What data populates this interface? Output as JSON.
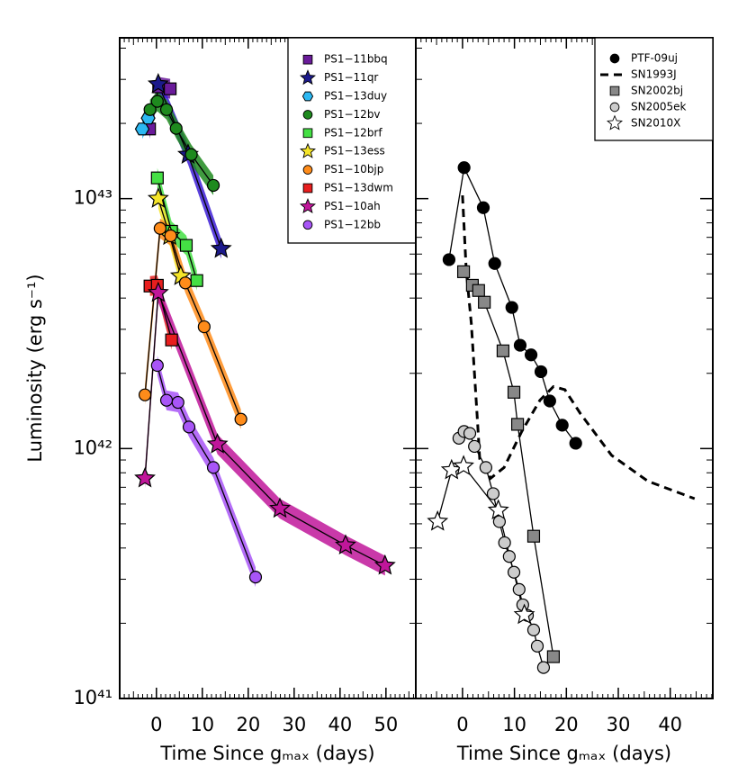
{
  "chart_data": [
    {
      "type": "line",
      "ylabel": "Luminosity (erg s⁻¹)",
      "xlabel": "Time Since gₘₐₓ (days)",
      "log_y": true,
      "legend": "upper right",
      "xlim": [
        -8,
        56.5
      ],
      "xticks": [
        0,
        10,
        20,
        30,
        40,
        50
      ],
      "ylim": [
        1e+41,
        4.4e+43
      ],
      "yticks": [
        {
          "value": 1e+41,
          "label": "10⁴¹"
        },
        {
          "value": 1e+42,
          "label": "10⁴²"
        },
        {
          "value": 1e+43,
          "label": "10⁴³"
        }
      ],
      "series": [
        {
          "name": "PS1−11bbq",
          "color": "#6a1b9a",
          "marker": "square",
          "band": true,
          "x": [
            -1.5,
            0.5,
            3
          ],
          "values": [
            1.9e+43,
            2.8e+43,
            2.75e+43
          ]
        },
        {
          "name": "PS1−11qr",
          "color": "#1c1a8c",
          "band_color": "#3d1fd6",
          "marker": "star",
          "band": true,
          "x": [
            0.4,
            6.9,
            14.1
          ],
          "values": [
            2.87e+43,
            1.5e+43,
            6.3e+42
          ]
        },
        {
          "name": "PS1−13duy",
          "color": "#2cb8f2",
          "marker": "hexagon",
          "band": true,
          "x": [
            -3.1,
            -1.8
          ],
          "values": [
            1.9e+43,
            2.1e+43
          ]
        },
        {
          "name": "PS1−12bv",
          "color": "#1e8a1e",
          "marker": "circle",
          "band": true,
          "x": [
            -1.4,
            0.2,
            2.2,
            4.3,
            7.6,
            12.4
          ],
          "values": [
            2.27e+43,
            2.45e+43,
            2.27e+43,
            1.91e+43,
            1.5e+43,
            1.13e+43
          ]
        },
        {
          "name": "PS1−12brf",
          "color": "#44e044",
          "marker": "square",
          "band": true,
          "x": [
            0.2,
            3.3,
            6.5,
            8.8
          ],
          "values": [
            1.21e+43,
            7.4e+42,
            6.5e+42,
            4.7e+42
          ]
        },
        {
          "name": "PS1−13ess",
          "color": "#f5e52a",
          "marker": "star",
          "band": true,
          "x": [
            0.4,
            2.9,
            5.3
          ],
          "values": [
            1e+43,
            7.1e+42,
            4.9e+42
          ]
        },
        {
          "name": "PS1−10bjp",
          "color": "#ff8c1a",
          "marker": "circle",
          "band": true,
          "x": [
            -2.5,
            0.8,
            3.1,
            6.3,
            10.4,
            18.4
          ],
          "values": [
            1.64e+42,
            7.6e+42,
            7.1e+42,
            4.6e+42,
            3.07e+42,
            1.31e+42
          ]
        },
        {
          "name": "PS1−13dwm",
          "color": "#e81e1e",
          "marker": "square",
          "band": true,
          "x": [
            -1.4,
            0.2,
            3.3
          ],
          "values": [
            4.47e+42,
            4.5e+42,
            2.72e+42
          ]
        },
        {
          "name": "PS1−10ah",
          "color": "#c0169a",
          "marker": "star",
          "band": true,
          "x": [
            -2.5,
            0.4,
            13.3,
            26.9,
            41.2,
            49.8
          ],
          "values": [
            7.6e+41,
            4.2e+42,
            1.04e+42,
            5.75e+41,
            4.1e+41,
            3.4e+41
          ]
        },
        {
          "name": "PS1−12bb",
          "color": "#a855f7",
          "marker": "circle",
          "band": true,
          "x": [
            0.2,
            2.2,
            4.7,
            7.1,
            12.4,
            21.6
          ],
          "values": [
            2.15e+42,
            1.56e+42,
            1.53e+42,
            1.22e+42,
            8.4e+41,
            3.06e+41
          ]
        }
      ]
    },
    {
      "type": "line",
      "xlabel": "Time Since gₘₐₓ (days)",
      "log_y": true,
      "legend": "upper right",
      "xlim": [
        -9,
        48.2
      ],
      "xticks": [
        0,
        10,
        20,
        30,
        40
      ],
      "ylim": [
        1e+41,
        4.4e+43
      ],
      "series": [
        {
          "name": "PTF-09uj",
          "color": "#000000",
          "marker": "circle",
          "linestyle": "solid",
          "x": [
            -2.6,
            0.3,
            4,
            6.2,
            9.5,
            11.1,
            13.2,
            15.1,
            16.8,
            19.2,
            21.8
          ],
          "values": [
            5.7e+42,
            1.33e+43,
            9.2e+42,
            5.5e+42,
            3.67e+42,
            2.59e+42,
            2.37e+42,
            2.03e+42,
            1.55e+42,
            1.24e+42,
            1.05e+42
          ]
        },
        {
          "name": "SN1993J",
          "color": "#000000",
          "linestyle": "dashed",
          "x": [
            0,
            0.7,
            1.7,
            2.9,
            3.3,
            5.4,
            8,
            11.4,
            14.9,
            17.5,
            19.7,
            22.7,
            28.7,
            35.7,
            44.7
          ],
          "values": [
            1.03e+43,
            5.2e+42,
            3.16e+42,
            1.26e+42,
            9.1e+41,
            7.6e+41,
            8.4e+41,
            1.17e+42,
            1.56e+42,
            1.77e+42,
            1.72e+42,
            1.38e+42,
            9.4e+41,
            7.4e+41,
            6.3e+41
          ]
        },
        {
          "name": "SN2002bj",
          "color": "#888888",
          "marker": "square",
          "linestyle": "solid",
          "x": [
            0.2,
            1.9,
            3.1,
            4.2,
            7.8,
            9.9,
            10.6,
            13.7,
            17.5
          ],
          "values": [
            5.1e+42,
            4.5e+42,
            4.29e+42,
            3.85e+42,
            2.46e+42,
            1.68e+42,
            1.25e+42,
            4.46e+41,
            1.47e+41
          ]
        },
        {
          "name": "SN2005ek",
          "color": "#cccccc",
          "marker": "circle",
          "linestyle": "solid",
          "x": [
            -0.7,
            0.3,
            1.4,
            2.3,
            4.5,
            5.9,
            7.1,
            8.1,
            9,
            9.9,
            10.9,
            11.6,
            12.5,
            13.7,
            14.4,
            15.6
          ],
          "values": [
            1.1e+42,
            1.17e+42,
            1.15e+42,
            1.02e+42,
            8.4e+41,
            6.6e+41,
            5.1e+41,
            4.2e+41,
            3.7e+41,
            3.2e+41,
            2.73e+41,
            2.37e+41,
            2.15e+41,
            1.88e+41,
            1.62e+41,
            1.33e+41
          ]
        },
        {
          "name": "SN2010X",
          "color": "#ffffff",
          "marker": "star",
          "linestyle": "solid",
          "x": [
            -4.8,
            -2.1,
            0.2,
            6.9,
            11.9
          ],
          "values": [
            5.1e+41,
            8.2e+41,
            8.5e+41,
            5.66e+41,
            2.16e+41
          ]
        }
      ]
    }
  ]
}
